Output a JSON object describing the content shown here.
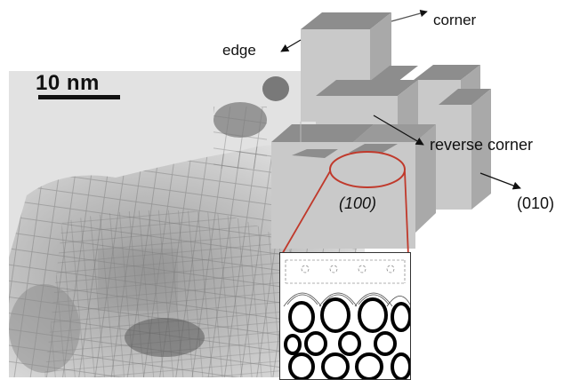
{
  "scale_bar": {
    "label": "10 nm"
  },
  "labels": {
    "corner": "corner",
    "edge": "edge",
    "reverse_corner": "reverse corner",
    "face_100": "(100)",
    "face_010": "(010)"
  },
  "colors": {
    "cube_face": "#c9c9c9",
    "cube_top": "#8d8d8d",
    "cube_side": "#a9a9a9",
    "highlight": "#c0392b",
    "tem_background": "#d6d6d6"
  }
}
